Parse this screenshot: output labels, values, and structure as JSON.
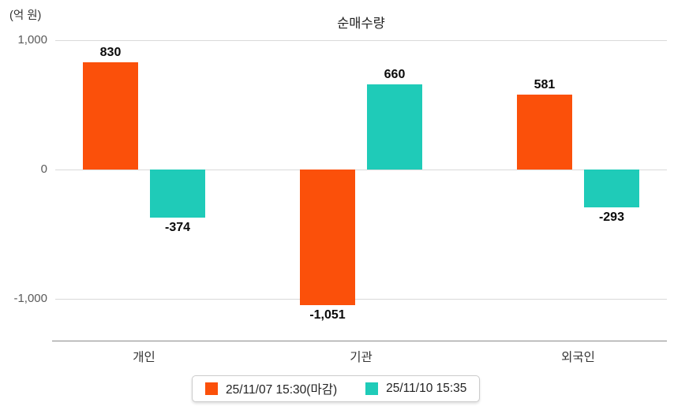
{
  "chart": {
    "title": "순매수량",
    "unit_label": "(억 원)"
  },
  "chart_data": {
    "type": "bar",
    "title": "순매수량",
    "unit": "억 원",
    "categories": [
      "개인",
      "기관",
      "외국인"
    ],
    "series": [
      {
        "name": "25/11/07 15:30(마감)",
        "color": "#fb500a",
        "values": [
          830,
          -1051,
          581
        ]
      },
      {
        "name": "25/11/10 15:35",
        "color": "#1fcbb8",
        "values": [
          -374,
          660,
          -293
        ]
      }
    ],
    "yticks": [
      1000,
      0,
      -1000
    ],
    "ylim": [
      -1325,
      1000
    ],
    "grid": true,
    "legend_position": "bottom",
    "colors": {
      "gridline": "#d9d9d9",
      "axis_line": "#8a8a8a",
      "tick_text": "#5a5a5a",
      "value_text": "#0a0a0a"
    }
  }
}
